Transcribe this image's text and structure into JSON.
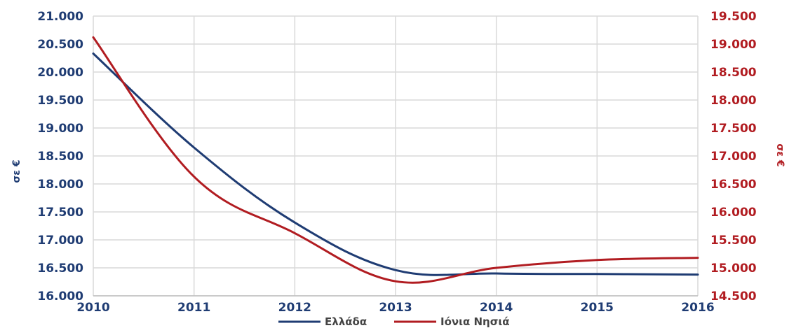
{
  "chart_data": {
    "type": "line",
    "title": "",
    "xlabel": "",
    "ylabel_left": "σε €",
    "ylabel_right": "σε €",
    "x": [
      2010,
      2011,
      2012,
      2013,
      2014,
      2015,
      2016
    ],
    "x_tick_labels": [
      "2010",
      "2011",
      "2012",
      "2013",
      "2014",
      "2015",
      "2016"
    ],
    "ylim_left": [
      16000,
      21000
    ],
    "ylim_right": [
      14500,
      19500
    ],
    "y_ticks_left": [
      "16.000",
      "16.500",
      "17.000",
      "17.500",
      "18.000",
      "18.500",
      "19.000",
      "19.500",
      "20.000",
      "20.500",
      "21.000"
    ],
    "y_ticks_right": [
      "14.500",
      "15.000",
      "15.500",
      "16.000",
      "16.500",
      "17.000",
      "17.500",
      "18.000",
      "18.500",
      "19.000",
      "19.500"
    ],
    "grid": true,
    "legend_position": "bottom-center",
    "series": [
      {
        "name": "Ελλάδα",
        "axis": "left",
        "color": "#1f3c73",
        "values": [
          20330,
          18650,
          17310,
          16460,
          16400,
          16390,
          16380
        ]
      },
      {
        "name": "Ιόνια Νησιά",
        "axis": "right",
        "color": "#b11c21",
        "values": [
          19120,
          16630,
          15620,
          14760,
          15000,
          15140,
          15180
        ]
      }
    ]
  }
}
